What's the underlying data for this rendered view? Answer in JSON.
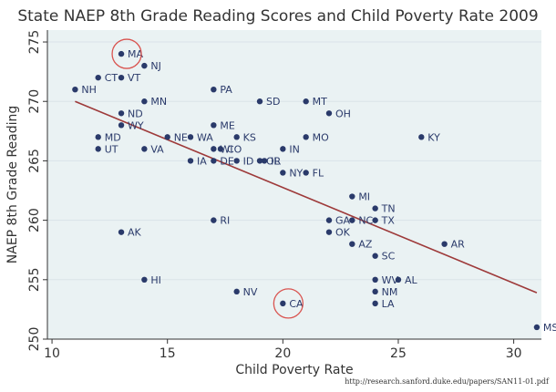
{
  "chart_data": {
    "type": "scatter",
    "title": "State NAEP 8th Grade Reading Scores and Child Poverty Rate 2009",
    "xlabel": "Child Poverty Rate",
    "ylabel": "NAEP 8th Grade Reading",
    "xlim": [
      9.8,
      31.2
    ],
    "ylim": [
      250,
      276
    ],
    "xticks": [
      10,
      15,
      20,
      25,
      30
    ],
    "yticks": [
      250,
      255,
      260,
      265,
      270,
      275
    ],
    "grid": true,
    "trendline": {
      "x": [
        11,
        31
      ],
      "y": [
        270,
        253.9
      ]
    },
    "highlighted": [
      "MA",
      "CA"
    ],
    "colors": {
      "point": "#2a3a6a",
      "trendline": "#9e3a3a",
      "highlight": "#d9534f",
      "grid": "#d9e3e8",
      "plot_bg": "#eaf2f3"
    },
    "points": [
      {
        "label": "MA",
        "x": 13.0,
        "y": 274
      },
      {
        "label": "NJ",
        "x": 14.0,
        "y": 273
      },
      {
        "label": "CT",
        "x": 12.0,
        "y": 272
      },
      {
        "label": "VT",
        "x": 13.0,
        "y": 272
      },
      {
        "label": "NH",
        "x": 11.0,
        "y": 271
      },
      {
        "label": "PA",
        "x": 17.0,
        "y": 271
      },
      {
        "label": "MN",
        "x": 14.0,
        "y": 270
      },
      {
        "label": "SD",
        "x": 19.0,
        "y": 270
      },
      {
        "label": "MT",
        "x": 21.0,
        "y": 270
      },
      {
        "label": "ND",
        "x": 13.0,
        "y": 269
      },
      {
        "label": "OH",
        "x": 22.0,
        "y": 269
      },
      {
        "label": "WY",
        "x": 13.0,
        "y": 268
      },
      {
        "label": "ME",
        "x": 17.0,
        "y": 268
      },
      {
        "label": "MD",
        "x": 12.0,
        "y": 267
      },
      {
        "label": "NE",
        "x": 15.0,
        "y": 267
      },
      {
        "label": "WA",
        "x": 16.0,
        "y": 267
      },
      {
        "label": "KS",
        "x": 18.0,
        "y": 267
      },
      {
        "label": "MO",
        "x": 21.0,
        "y": 267
      },
      {
        "label": "KY",
        "x": 26.0,
        "y": 267
      },
      {
        "label": "UT",
        "x": 12.0,
        "y": 266
      },
      {
        "label": "VA",
        "x": 14.0,
        "y": 266
      },
      {
        "label": "WI",
        "x": 17.0,
        "y": 266
      },
      {
        "label": "CO",
        "x": 17.3,
        "y": 266
      },
      {
        "label": "IN",
        "x": 20.0,
        "y": 266
      },
      {
        "label": "IA",
        "x": 16.0,
        "y": 265
      },
      {
        "label": "DE",
        "x": 17.0,
        "y": 265
      },
      {
        "label": "ID",
        "x": 18.0,
        "y": 265
      },
      {
        "label": "OR",
        "x": 19.0,
        "y": 265
      },
      {
        "label": "IL",
        "x": 19.2,
        "y": 265
      },
      {
        "label": "NY",
        "x": 20.0,
        "y": 264
      },
      {
        "label": "FL",
        "x": 21.0,
        "y": 264
      },
      {
        "label": "MI",
        "x": 23.0,
        "y": 262
      },
      {
        "label": "TN",
        "x": 24.0,
        "y": 261
      },
      {
        "label": "RI",
        "x": 17.0,
        "y": 260
      },
      {
        "label": "GA",
        "x": 22.0,
        "y": 260
      },
      {
        "label": "NC",
        "x": 23.0,
        "y": 260
      },
      {
        "label": "TX",
        "x": 24.0,
        "y": 260
      },
      {
        "label": "AK",
        "x": 13.0,
        "y": 259
      },
      {
        "label": "OK",
        "x": 22.0,
        "y": 259
      },
      {
        "label": "AZ",
        "x": 23.0,
        "y": 258
      },
      {
        "label": "AR",
        "x": 27.0,
        "y": 258
      },
      {
        "label": "SC",
        "x": 24.0,
        "y": 257
      },
      {
        "label": "HI",
        "x": 14.0,
        "y": 255
      },
      {
        "label": "WV",
        "x": 24.0,
        "y": 255
      },
      {
        "label": "AL",
        "x": 25.0,
        "y": 255
      },
      {
        "label": "NV",
        "x": 18.0,
        "y": 254
      },
      {
        "label": "NM",
        "x": 24.0,
        "y": 254
      },
      {
        "label": "CA",
        "x": 20.0,
        "y": 253
      },
      {
        "label": "LA",
        "x": 24.0,
        "y": 253
      },
      {
        "label": "MS",
        "x": 31.0,
        "y": 251
      }
    ]
  },
  "source": "http://research.sanford.duke.edu/papers/SAN11-01.pdf"
}
